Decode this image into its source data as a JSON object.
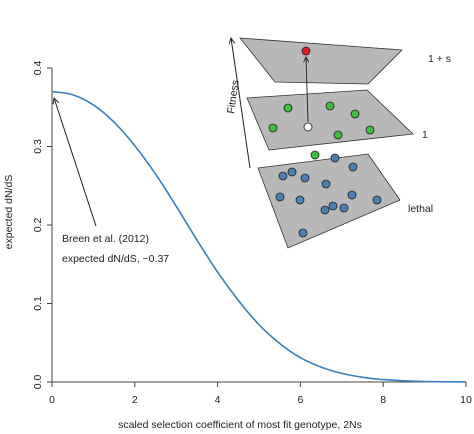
{
  "chart_data": {
    "type": "line",
    "xlabel": "scaled selection coefficient of most fit genotype, 2Ns",
    "ylabel": "expected dN/dS",
    "xlim": [
      0,
      10
    ],
    "ylim": [
      0,
      0.4
    ],
    "x_ticks": [
      "0",
      "2",
      "4",
      "6",
      "8",
      "10"
    ],
    "y_ticks": [
      "0.0",
      "0.1",
      "0.2",
      "0.3",
      "0.4"
    ],
    "grid": false,
    "series": [
      {
        "color": "#3a7fc0",
        "x": [
          0,
          0.5,
          1,
          1.5,
          2,
          2.5,
          3,
          3.5,
          4,
          4.5,
          5,
          5.5,
          6,
          6.5,
          7,
          7.5,
          8,
          8.5,
          9,
          9.5,
          10
        ],
        "y": [
          0.37,
          0.366,
          0.353,
          0.331,
          0.301,
          0.265,
          0.224,
          0.181,
          0.14,
          0.104,
          0.073,
          0.049,
          0.031,
          0.019,
          0.011,
          0.006,
          0.003,
          0.0015,
          0.0007,
          0.0003,
          0.0001
        ]
      }
    ],
    "annotation": {
      "lines": [
        "Breen et al. (2012)",
        "expected dN/dS, ~0.37"
      ],
      "points_to": {
        "x": 0,
        "y": 0.37
      }
    }
  },
  "inset": {
    "fitness_label": "Fitness",
    "planes": [
      {
        "label": "1 + s",
        "points": [
          {
            "color": "#e02020"
          }
        ]
      },
      {
        "label": "1",
        "points": [
          {
            "color": "#3cc13c"
          },
          {
            "color": "#3cc13c"
          },
          {
            "color": "#3cc13c"
          },
          {
            "color": "#3cc13c"
          },
          {
            "color": "#3cc13c"
          },
          {
            "color": "#3cc13c"
          },
          {
            "color": "#3cc13c"
          },
          {
            "color": "#ffffff"
          }
        ]
      },
      {
        "label": "lethal",
        "points": [
          {
            "color": "#4a7fb8"
          },
          {
            "color": "#4a7fb8"
          },
          {
            "color": "#4a7fb8"
          },
          {
            "color": "#4a7fb8"
          },
          {
            "color": "#4a7fb8"
          },
          {
            "color": "#4a7fb8"
          },
          {
            "color": "#4a7fb8"
          },
          {
            "color": "#4a7fb8"
          },
          {
            "color": "#4a7fb8"
          },
          {
            "color": "#4a7fb8"
          },
          {
            "color": "#4a7fb8"
          },
          {
            "color": "#4a7fb8"
          },
          {
            "color": "#4a7fb8"
          },
          {
            "color": "#4a7fb8"
          }
        ]
      }
    ]
  }
}
